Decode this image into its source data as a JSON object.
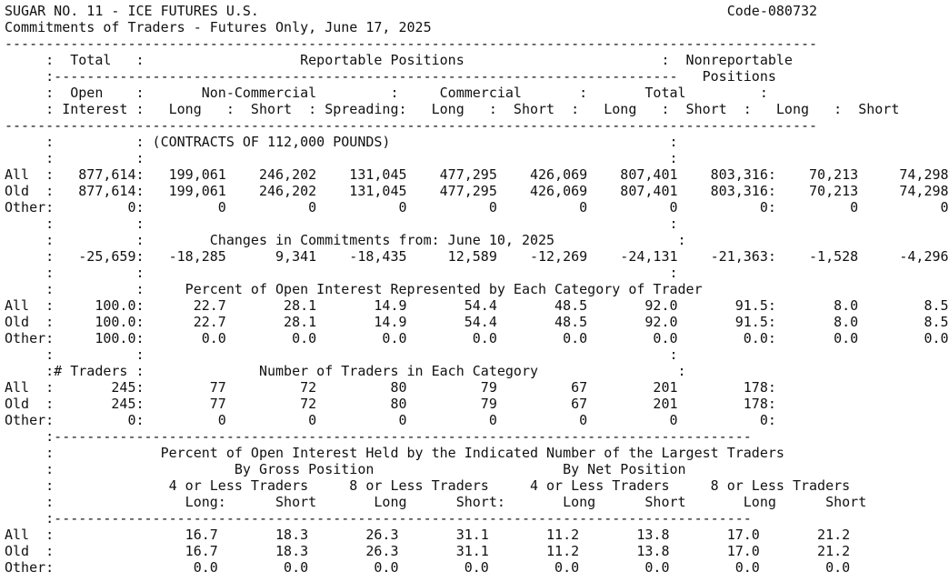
{
  "document": {
    "header_title": "SUGAR NO. 11 - ICE FUTURES U.S.",
    "header_code": "Code-080732",
    "header_subtitle": "Commitments of Traders - Futures Only, June 17, 2025",
    "lines": [
      "SUGAR NO. 11 - ICE FUTURES U.S.                                                         Code-080732",
      "Commitments of Traders - Futures Only, June 17, 2025",
      "---------------------------------------------------------------------------------------------------",
      "     :  Total   :                   Reportable Positions                        :  Nonreportable",
      "     :----------------------------------------------------------------------------   Positions",
      "     :  Open    :       Non-Commercial         :     Commercial       :       Total         :",
      "     : Interest :   Long   :  Short  : Spreading:   Long   :  Short  :   Long   :  Short  :   Long   :  Short",
      "---------------------------------------------------------------------------------------------------",
      "     :          : (CONTRACTS OF 112,000 POUNDS)                                  :",
      "     :          :                                                                :",
      "All  :   877,614:   199,061    246,202    131,045    477,295    426,069    807,401    803,316:    70,213     74,298",
      "Old  :   877,614:   199,061    246,202    131,045    477,295    426,069    807,401    803,316:    70,213     74,298",
      "Other:         0:         0          0          0          0          0          0          0:         0          0",
      "     :          :                                                                :",
      "     :          :        Changes in Commitments from: June 10, 2025               :",
      "     :   -25,659:   -18,285      9,341    -18,435     12,589    -12,269    -24,131    -21,363:    -1,528     -4,296",
      "     :          :                                                                :",
      "     :          :     Percent of Open Interest Represented by Each Category of Trader",
      "All  :     100.0:      22.7       28.1       14.9       54.4       48.5       92.0       91.5:       8.0        8.5",
      "Old  :     100.0:      22.7       28.1       14.9       54.4       48.5       92.0       91.5:       8.0        8.5",
      "Other:     100.0:       0.0        0.0        0.0        0.0        0.0        0.0        0.0:       0.0        0.0",
      "     :          :                                                                :",
      "     :# Traders :              Number of Traders in Each Category                 :",
      "All  :       245:        77         72         80         79         67        201        178:",
      "Old  :       245:        77         72         80         79         67        201        178:",
      "Other:         0:         0          0          0          0          0          0          0:",
      "     :-------------------------------------------------------------------------------------",
      "     :             Percent of Open Interest Held by the Indicated Number of the Largest Traders",
      "     :                      By Gross Position                       By Net Position",
      "     :              4 or Less Traders     8 or Less Traders     4 or Less Traders     8 or Less Traders",
      "     :                Long:      Short       Long      Short:       Long      Short       Long      Short",
      "     :-------------------------------------------------------------------------------------",
      "All  :                16.7       18.3       26.3       31.1       11.2       13.8       17.0       21.2",
      "Old  :                16.7       18.3       26.3       31.1       11.2       13.8       17.0       21.2",
      "Other:                 0.0        0.0        0.0        0.0        0.0        0.0        0.0        0.0"
    ]
  }
}
